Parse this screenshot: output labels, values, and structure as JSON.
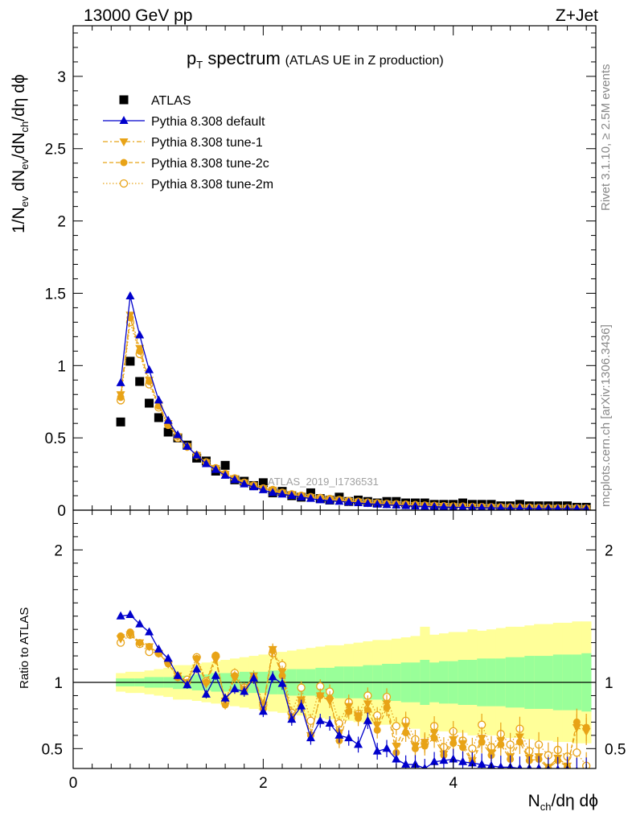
{
  "header": {
    "left": "13000 GeV pp",
    "right": "Z+Jet"
  },
  "title": {
    "main_p": "p",
    "main_sub": "T",
    "main_rest": " spectrum",
    "extra": "(ATLAS UE in Z production)"
  },
  "side_labels": {
    "rivet": "Rivet 3.1.10, ≥ 2.5M events",
    "mcplots": "mcplots.cern.ch [arXiv:1306.3436]"
  },
  "watermark": "ATLAS_2019_I1736531",
  "axes": {
    "ylabel_main": {
      "a": "1/N",
      "a_sub": "ev",
      "b": " dN",
      "b_sub": "ev",
      "c": "/dN",
      "c_sub": "ch",
      "d": "/dη dϕ"
    },
    "ylabel_ratio": "Ratio to ATLAS",
    "xlabel": {
      "a": "N",
      "a_sub": "ch",
      "b": "/dη dϕ"
    }
  },
  "colors": {
    "atlas": "#000000",
    "default": "#0000cc",
    "tunes": "#e8a317",
    "band_inner": "#99ff99",
    "band_outer": "#ffff99"
  },
  "chart_data": [
    {
      "type": "scatter",
      "panel": "main",
      "xlim": [
        0,
        5.5
      ],
      "ylim": [
        0,
        3.35
      ],
      "xticks": [
        "0",
        "2",
        "4"
      ],
      "yticks": [
        "0",
        "0.5",
        "1",
        "1.5",
        "2",
        "2.5",
        "3"
      ],
      "x": [
        0.5,
        0.6,
        0.7,
        0.8,
        0.9,
        1.0,
        1.1,
        1.2,
        1.3,
        1.4,
        1.5,
        1.6,
        1.7,
        1.8,
        1.9,
        2.0,
        2.1,
        2.2,
        2.3,
        2.4,
        2.5,
        2.6,
        2.7,
        2.8,
        2.9,
        3.0,
        3.1,
        3.2,
        3.3,
        3.4,
        3.5,
        3.6,
        3.7,
        3.8,
        3.9,
        4.0,
        4.1,
        4.2,
        4.3,
        4.4,
        4.5,
        4.6,
        4.7,
        4.8,
        4.9,
        5.0,
        5.1,
        5.2,
        5.3,
        5.4
      ],
      "series": [
        {
          "name": "ATLAS",
          "marker": "square",
          "values": [
            0.61,
            1.03,
            0.89,
            0.74,
            0.64,
            0.54,
            0.5,
            0.45,
            0.36,
            0.34,
            0.27,
            0.31,
            0.21,
            0.2,
            0.17,
            0.19,
            0.12,
            0.13,
            0.1,
            0.09,
            0.12,
            0.08,
            0.07,
            0.09,
            0.06,
            0.07,
            0.06,
            0.05,
            0.06,
            0.06,
            0.05,
            0.05,
            0.05,
            0.04,
            0.04,
            0.04,
            0.05,
            0.04,
            0.04,
            0.04,
            0.03,
            0.03,
            0.04,
            0.03,
            0.03,
            0.03,
            0.03,
            0.03,
            0.02,
            0.02
          ]
        },
        {
          "name": "Pythia 8.308 default",
          "marker": "triangle-up",
          "values": [
            0.88,
            1.48,
            1.21,
            0.97,
            0.76,
            0.62,
            0.52,
            0.44,
            0.38,
            0.32,
            0.28,
            0.24,
            0.21,
            0.18,
            0.16,
            0.14,
            0.12,
            0.11,
            0.1,
            0.09,
            0.08,
            0.07,
            0.065,
            0.06,
            0.055,
            0.05,
            0.045,
            0.04,
            0.037,
            0.034,
            0.03,
            0.028,
            0.026,
            0.024,
            0.022,
            0.02,
            0.019,
            0.018,
            0.017,
            0.016,
            0.015,
            0.014,
            0.013,
            0.012,
            0.011,
            0.011,
            0.01,
            0.01,
            0.009,
            0.009
          ]
        },
        {
          "name": "Pythia 8.308 tune-1",
          "marker": "triangle-down",
          "values": [
            0.8,
            1.35,
            1.12,
            0.9,
            0.73,
            0.6,
            0.51,
            0.44,
            0.38,
            0.33,
            0.29,
            0.25,
            0.22,
            0.19,
            0.17,
            0.15,
            0.14,
            0.12,
            0.11,
            0.1,
            0.09,
            0.08,
            0.075,
            0.07,
            0.062,
            0.058,
            0.052,
            0.048,
            0.044,
            0.04,
            0.037,
            0.034,
            0.032,
            0.03,
            0.028,
            0.026,
            0.024,
            0.023,
            0.021,
            0.02,
            0.019,
            0.018,
            0.017,
            0.016,
            0.015,
            0.014,
            0.014,
            0.013,
            0.012,
            0.012
          ]
        },
        {
          "name": "Pythia 8.308 tune-2c",
          "marker": "circle",
          "values": [
            0.78,
            1.33,
            1.1,
            0.89,
            0.72,
            0.59,
            0.51,
            0.44,
            0.38,
            0.33,
            0.29,
            0.25,
            0.22,
            0.19,
            0.17,
            0.15,
            0.13,
            0.12,
            0.11,
            0.1,
            0.09,
            0.08,
            0.074,
            0.068,
            0.062,
            0.057,
            0.052,
            0.047,
            0.043,
            0.04,
            0.037,
            0.034,
            0.032,
            0.03,
            0.028,
            0.026,
            0.024,
            0.022,
            0.021,
            0.02,
            0.019,
            0.018,
            0.017,
            0.016,
            0.015,
            0.014,
            0.013,
            0.013,
            0.012,
            0.011
          ]
        },
        {
          "name": "Pythia 8.308 tune-2m",
          "marker": "open-circle",
          "values": [
            0.76,
            1.3,
            1.08,
            0.87,
            0.71,
            0.59,
            0.5,
            0.44,
            0.38,
            0.33,
            0.29,
            0.25,
            0.22,
            0.19,
            0.17,
            0.15,
            0.14,
            0.12,
            0.11,
            0.1,
            0.09,
            0.085,
            0.078,
            0.07,
            0.064,
            0.058,
            0.053,
            0.048,
            0.044,
            0.041,
            0.038,
            0.035,
            0.032,
            0.03,
            0.028,
            0.026,
            0.025,
            0.023,
            0.022,
            0.021,
            0.02,
            0.019,
            0.018,
            0.017,
            0.016,
            0.015,
            0.014,
            0.014,
            0.013,
            0.012
          ]
        }
      ]
    },
    {
      "type": "line",
      "panel": "ratio",
      "xlim": [
        0,
        5.5
      ],
      "ylim": [
        0.35,
        2.3
      ],
      "xticks": [
        "0",
        "2",
        "4"
      ],
      "yticks": [
        "0.5",
        "1",
        "2"
      ],
      "reference_line": 1,
      "x": [
        0.5,
        0.6,
        0.7,
        0.8,
        0.9,
        1.0,
        1.1,
        1.2,
        1.3,
        1.4,
        1.5,
        1.6,
        1.7,
        1.8,
        1.9,
        2.0,
        2.1,
        2.2,
        2.3,
        2.4,
        2.5,
        2.6,
        2.7,
        2.8,
        2.9,
        3.0,
        3.1,
        3.2,
        3.3,
        3.4,
        3.5,
        3.6,
        3.7,
        3.8,
        3.9,
        4.0,
        4.1,
        4.2,
        4.3,
        4.4,
        4.5,
        4.6,
        4.7,
        4.8,
        4.9,
        5.0,
        5.1,
        5.2,
        5.3,
        5.4
      ],
      "band_inner_halfwidth": [
        0.03,
        0.03,
        0.03,
        0.04,
        0.04,
        0.04,
        0.05,
        0.05,
        0.06,
        0.06,
        0.07,
        0.07,
        0.07,
        0.08,
        0.08,
        0.08,
        0.09,
        0.09,
        0.1,
        0.1,
        0.1,
        0.11,
        0.11,
        0.12,
        0.12,
        0.12,
        0.13,
        0.13,
        0.14,
        0.14,
        0.15,
        0.15,
        0.17,
        0.15,
        0.16,
        0.16,
        0.17,
        0.17,
        0.18,
        0.18,
        0.18,
        0.19,
        0.19,
        0.2,
        0.2,
        0.2,
        0.21,
        0.21,
        0.21,
        0.22
      ],
      "band_outer_halfwidth": [
        0.07,
        0.08,
        0.08,
        0.09,
        0.1,
        0.11,
        0.13,
        0.13,
        0.14,
        0.15,
        0.16,
        0.17,
        0.18,
        0.19,
        0.2,
        0.21,
        0.22,
        0.23,
        0.24,
        0.25,
        0.26,
        0.27,
        0.28,
        0.28,
        0.29,
        0.3,
        0.31,
        0.32,
        0.32,
        0.33,
        0.34,
        0.35,
        0.42,
        0.36,
        0.37,
        0.38,
        0.38,
        0.4,
        0.39,
        0.4,
        0.41,
        0.42,
        0.42,
        0.43,
        0.44,
        0.44,
        0.45,
        0.45,
        0.46,
        0.46
      ],
      "series": [
        {
          "name": "Pythia 8.308 default",
          "values": [
            1.5,
            1.51,
            1.44,
            1.38,
            1.25,
            1.18,
            1.05,
            0.98,
            1.1,
            0.91,
            1.05,
            0.88,
            0.95,
            0.93,
            1.03,
            0.78,
            1.04,
            0.99,
            0.72,
            0.82,
            0.58,
            0.71,
            0.69,
            0.6,
            0.58,
            0.53,
            0.71,
            0.48,
            0.5,
            0.42,
            0.38,
            0.38,
            0.35,
            0.4,
            0.41,
            0.42,
            0.4,
            0.39,
            0.38,
            0.37,
            0.36,
            0.36,
            0.35,
            0.35,
            0.35,
            0.34,
            0.34,
            0.34,
            0.33,
            0.33
          ]
        },
        {
          "name": "Pythia 8.308 tune-1",
          "values": [
            1.33,
            1.36,
            1.3,
            1.27,
            1.22,
            1.14,
            1.05,
            1.0,
            1.17,
            0.99,
            1.17,
            0.86,
            1.03,
            0.95,
            1.05,
            0.83,
            1.25,
            1.08,
            0.74,
            0.87,
            0.6,
            0.9,
            0.86,
            0.62,
            0.82,
            0.75,
            0.84,
            0.68,
            0.84,
            0.52,
            0.67,
            0.52,
            0.55,
            0.62,
            0.46,
            0.57,
            0.54,
            0.41,
            0.58,
            0.47,
            0.56,
            0.44,
            0.59,
            0.43,
            0.44,
            0.36,
            0.43,
            0.37,
            0.66,
            0.63
          ]
        },
        {
          "name": "Pythia 8.308 tune-2c",
          "values": [
            1.35,
            1.38,
            1.3,
            1.27,
            1.22,
            1.14,
            1.04,
            1.0,
            1.18,
            1.0,
            1.2,
            0.83,
            1.05,
            0.94,
            1.04,
            0.8,
            1.24,
            1.05,
            0.73,
            0.86,
            0.6,
            0.9,
            0.88,
            0.56,
            0.78,
            0.73,
            0.79,
            0.64,
            0.81,
            0.47,
            0.62,
            0.5,
            0.52,
            0.58,
            0.45,
            0.54,
            0.51,
            0.4,
            0.55,
            0.45,
            0.53,
            0.42,
            0.55,
            0.41,
            0.42,
            0.35,
            0.41,
            0.36,
            0.7,
            0.66
          ]
        },
        {
          "name": "Pythia 8.308 tune-2m",
          "values": [
            1.3,
            1.36,
            1.29,
            1.23,
            1.22,
            1.15,
            1.04,
            1.02,
            1.19,
            1.01,
            1.2,
            0.85,
            1.07,
            0.96,
            1.03,
            0.83,
            1.22,
            1.13,
            0.77,
            0.96,
            0.71,
            0.97,
            0.93,
            0.69,
            0.85,
            0.76,
            0.9,
            0.75,
            0.89,
            0.67,
            0.71,
            0.57,
            0.54,
            0.67,
            0.51,
            0.63,
            0.56,
            0.5,
            0.68,
            0.51,
            0.61,
            0.53,
            0.65,
            0.48,
            0.53,
            0.45,
            0.49,
            0.44,
            0.47,
            0.37
          ]
        }
      ]
    }
  ]
}
